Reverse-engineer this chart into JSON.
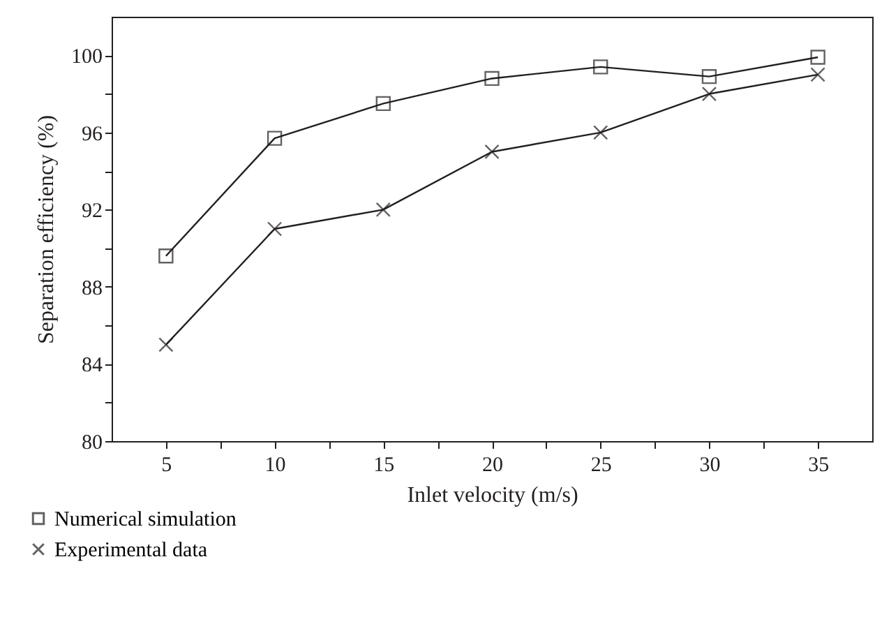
{
  "chart_data": {
    "type": "line",
    "xlabel": "Inlet velocity (m/s)",
    "ylabel": "Separation efficiency (%)",
    "x": [
      5,
      10,
      15,
      20,
      25,
      30,
      35
    ],
    "series": [
      {
        "name": "Numerical simulation",
        "color": "#231f20",
        "marker": "square",
        "values": [
          89.6,
          95.7,
          97.5,
          98.8,
          99.4,
          98.9,
          99.9
        ]
      },
      {
        "name": "Experimental data",
        "color": "#231f20",
        "marker": "cross",
        "values": [
          85.0,
          91.0,
          92.0,
          95.0,
          96.0,
          98.0,
          99.0
        ]
      }
    ],
    "xlim": [
      2.5,
      37.5
    ],
    "xticks": [
      5,
      {
        "value": 7.5,
        "label": null
      },
      10,
      {
        "value": 12.5,
        "label": null
      },
      15,
      {
        "value": 17.5,
        "label": null
      },
      20,
      {
        "value": 22.5,
        "label": null
      },
      25,
      {
        "value": 27.5,
        "label": null
      },
      30,
      {
        "value": 32.5,
        "label": null
      },
      35
    ],
    "ylim": [
      80,
      102
    ],
    "yticks": [
      80,
      {
        "value": 82,
        "label": null
      },
      84,
      {
        "value": 86,
        "label": null
      },
      88,
      {
        "value": 90,
        "label": null
      },
      92,
      {
        "value": 94,
        "label": null
      },
      96,
      {
        "value": 98,
        "label": null
      },
      100
    ],
    "grid": false,
    "legend": "bottom left",
    "line_style": "solid"
  }
}
